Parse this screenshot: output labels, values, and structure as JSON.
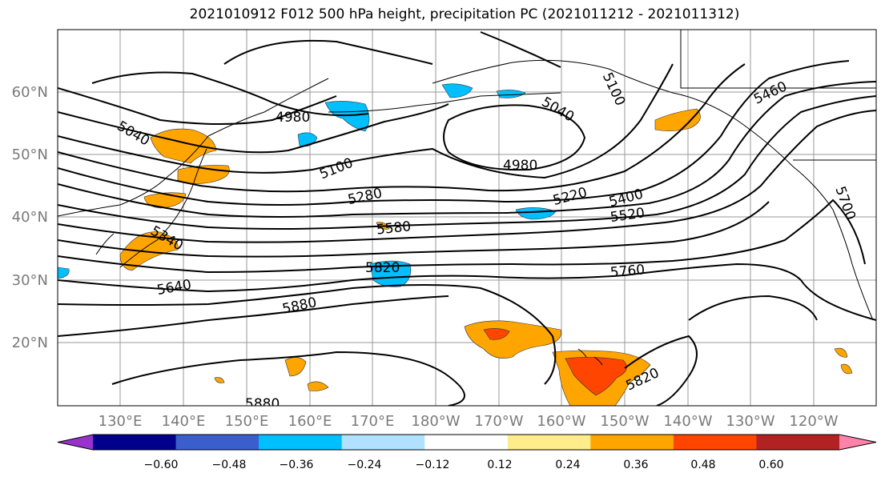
{
  "title": "2021010912 F012 500 hPa height, precipitation PC (2021011212 - 2021011312)",
  "lat_labels": [
    "60°N",
    "50°N",
    "40°N",
    "30°N",
    "20°N"
  ],
  "lon_labels": [
    "130°E",
    "140°E",
    "150°E",
    "160°E",
    "170°E",
    "180°W",
    "170°W",
    "160°W",
    "150°W",
    "140°W",
    "130°W",
    "120°W"
  ],
  "colorbar": {
    "colors": [
      "#9932cc",
      "#00008b",
      "#3a5fcd",
      "#00bfff",
      "#b0e2ff",
      "#ffffff",
      "#ffec8b",
      "#ffa500",
      "#ff4500",
      "#b22222",
      "#ff82ab"
    ],
    "tick_labels": [
      "−0.60",
      "−0.48",
      "−0.36",
      "−0.24",
      "−0.12",
      "0.12",
      "0.24",
      "0.36",
      "0.48",
      "0.60"
    ]
  },
  "contour_labels": [
    "4980",
    "5040",
    "5100",
    "5280",
    "5580",
    "5820",
    "5880",
    "5640",
    "5340",
    "4980",
    "5040",
    "5100",
    "5220",
    "5400",
    "5520",
    "5760",
    "5820",
    "5460",
    "5700",
    "5880"
  ]
}
